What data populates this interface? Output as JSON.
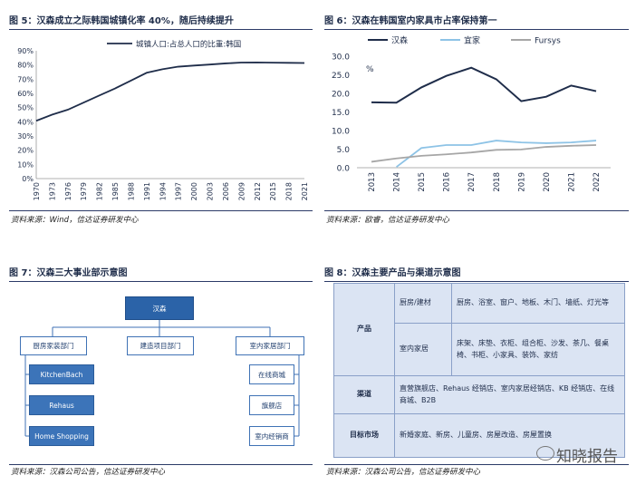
{
  "fig5": {
    "title": "图 5：汉森成立之际韩国城镇化率 40%，随后持续提升",
    "source": "资料来源：Wind，信达证券研发中心",
    "chart_data": {
      "type": "line",
      "x": [
        "1970",
        "1973",
        "1976",
        "1979",
        "1982",
        "1985",
        "1988",
        "1991",
        "1994",
        "1997",
        "2000",
        "2003",
        "2006",
        "2009",
        "2012",
        "2015",
        "2018",
        "2021"
      ],
      "series": [
        {
          "name": "城镇人口:占总人口的比重:韩国",
          "color": "#1f2d4a",
          "values": [
            40.7,
            45.0,
            48.5,
            53.5,
            58.5,
            63.5,
            69.0,
            74.5,
            77.0,
            78.8,
            79.6,
            80.3,
            81.1,
            81.7,
            81.8,
            81.6,
            81.5,
            81.4
          ]
        }
      ],
      "ylim": [
        0,
        90
      ],
      "yticks": [
        "0%",
        "10%",
        "20%",
        "30%",
        "40%",
        "50%",
        "60%",
        "70%",
        "80%",
        "90%"
      ],
      "legend": "top"
    }
  },
  "fig6": {
    "title": "图 6：汉森在韩国室内家具市占率保持第一",
    "source": "资料来源：欧睿，信达证券研发中心",
    "chart_data": {
      "type": "line",
      "x": [
        "2013",
        "2014",
        "2015",
        "2016",
        "2017",
        "2018",
        "2019",
        "2020",
        "2021",
        "2022"
      ],
      "series": [
        {
          "name": "汉森",
          "color": "#1f2d4a",
          "values": [
            17.6,
            17.5,
            21.6,
            24.7,
            26.9,
            23.8,
            17.9,
            19.1,
            22.1,
            20.6
          ]
        },
        {
          "name": "宜家",
          "color": "#8dc3e6",
          "values": [
            null,
            0.2,
            5.3,
            6.1,
            6.1,
            7.3,
            6.8,
            6.6,
            6.8,
            7.3
          ]
        },
        {
          "name": "Fursys",
          "color": "#a6a6a6",
          "values": [
            1.6,
            2.5,
            3.2,
            3.6,
            4.1,
            4.8,
            4.9,
            5.6,
            5.9,
            6.1
          ]
        }
      ],
      "ylim": [
        0,
        30
      ],
      "yticks": [
        "0.0",
        "5.0",
        "10.0",
        "15.0",
        "20.0",
        "25.0",
        "30.0"
      ],
      "unit": "%",
      "legend": "top"
    }
  },
  "fig7": {
    "title": "图 7：汉森三大事业部示意图",
    "source": "资料来源：汉森公司公告，信达证券研发中心",
    "root": "汉森",
    "divisions": [
      "厨房家装部门",
      "建造项目部门",
      "室内家居部门"
    ],
    "kitchen_items": [
      "KitchenBach",
      "Rehaus",
      "Home Shopping"
    ],
    "interior_items": [
      "在线商城",
      "旗舰店",
      "室内经销商"
    ]
  },
  "fig8": {
    "title": "图 8：汉森主要产品与渠道示意图",
    "source": "资料来源：汉森公司公告，信达证券研发中心",
    "rows": {
      "product_label": "产品",
      "kitchen_sub": "厨房/建材",
      "kitchen_val": "厨房、浴室、窗户、地板、木门、墙纸、灯光等",
      "interior_sub": "室内家居",
      "interior_val": "床架、床垫、衣柜、组合柜、沙发、茶几、餐桌椅、书柜、小家具、装饰、家纺",
      "channel_label": "渠道",
      "channel_val": "直营旗舰店、Rehaus 经销店、室内家居经销店、KB 经销店、在线商城、B2B",
      "market_label": "目标市场",
      "market_val": "新婚家庭、新房、儿童房、房屋改造、房屋置换"
    }
  },
  "watermark": {
    "text": "知晓报告"
  }
}
